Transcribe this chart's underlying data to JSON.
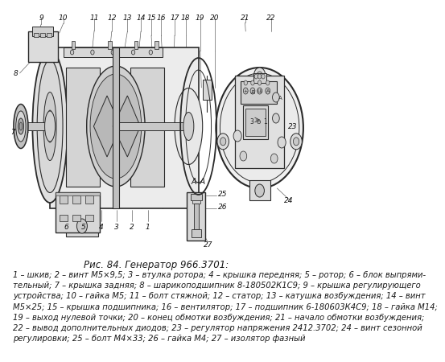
{
  "title": "Рис. 84. Генератор 966.3701:",
  "caption_lines": [
    "1 – шкив; 2 – винт М5×9,5; 3 – втулка ротора; 4 – крышка передняя; 5 – ротор; 6 – блок выпрями-",
    "тельный; 7 – крышка задняя; 8 – шарикоподшипник 8-180502К1С9; 9 – крышка регулирующего",
    "устройства; 10 – гайка М5; 11 – болт стяжной; 12 – статор; 13 – катушка возбуждения; 14 – винт",
    "М5×25; 15 – крышка подшипника; 16 – вентилятор; 17 – подшипник 6-180603К4С9; 18 – гайка М14;",
    "19 – выход нулевой точки; 20 – конец обмотки возбуждения; 21 – начало обмотки возбуждения;",
    "22 – вывод дополнительных диодов; 23 – регулятор напряжения 2412.3702; 24 – винт сезонной",
    "регулировки; 25 – болт М4×33; 26 – гайка М4; 27 – изолятор фазный"
  ],
  "bg_color": "#ffffff",
  "text_color": "#1a1a1a",
  "diagram_bg": "#f5f5f5",
  "line_color": "#2a2a2a",
  "fill_light": "#e0e0e0",
  "fill_mid": "#c8c8c8",
  "fill_dark": "#a0a0a0",
  "hatch_color": "#888888",
  "title_fontsize": 8.5,
  "caption_fontsize": 7.2,
  "number_fontsize": 6.5
}
